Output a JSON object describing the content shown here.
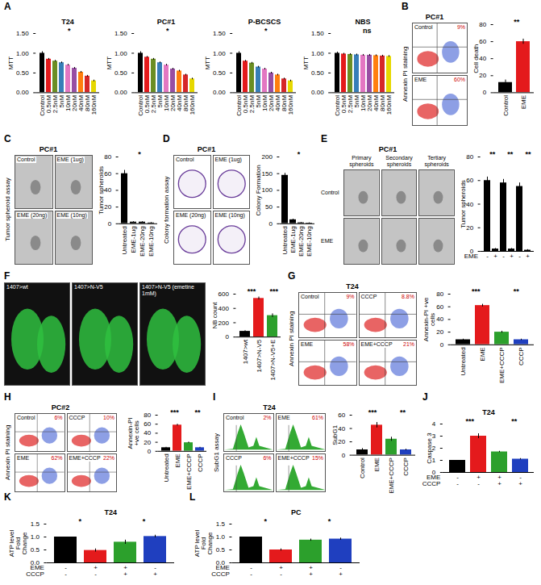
{
  "chart_data": [
    {
      "panel": "A",
      "type": "bar",
      "title": "T24",
      "categories": [
        "Control",
        "0.5nM",
        "2.5nM",
        "5nM",
        "10nM",
        "20nM",
        "40nM",
        "80nM",
        "160nM"
      ],
      "values": [
        1.0,
        0.85,
        0.8,
        0.76,
        0.7,
        0.62,
        0.52,
        0.42,
        0.3
      ],
      "errors": [
        0.04,
        0.02,
        0.02,
        0.02,
        0.02,
        0.02,
        0.02,
        0.02,
        0.02
      ],
      "colors": [
        "#000000",
        "#e41a1c",
        "#6b8e23",
        "#377eb8",
        "#e377c2",
        "#984ea3",
        "#ff7f0e",
        "#d62728",
        "#e6d800"
      ],
      "ylabel": "MTT",
      "ylim": [
        0,
        1.5
      ],
      "yticks": [
        {
          "value": 0,
          "label": "0.00"
        },
        {
          "value": 0.5,
          "label": "0.50"
        },
        {
          "value": 1,
          "label": "1.00"
        },
        {
          "value": 1.5,
          "label": "1.50"
        }
      ],
      "annotations": [
        "*"
      ]
    },
    {
      "type": "bar",
      "title": "PC#1",
      "categories": [
        "Control",
        "0.5nM",
        "2.5nM",
        "5nM",
        "10nM",
        "20nM",
        "40nM",
        "80nM",
        "160nM"
      ],
      "values": [
        1.0,
        0.9,
        0.85,
        0.76,
        0.7,
        0.6,
        0.55,
        0.45,
        0.35
      ],
      "errors": [
        0.04,
        0.02,
        0.02,
        0.02,
        0.02,
        0.02,
        0.02,
        0.02,
        0.02
      ],
      "colors": [
        "#000000",
        "#e41a1c",
        "#6b8e23",
        "#377eb8",
        "#e377c2",
        "#984ea3",
        "#ff7f0e",
        "#d62728",
        "#e6d800"
      ],
      "ylabel": "MTT",
      "ylim": [
        0,
        1.5
      ],
      "yticks": [
        {
          "value": 0,
          "label": "0.00"
        },
        {
          "value": 0.5,
          "label": "0.50"
        },
        {
          "value": 1,
          "label": "1.00"
        },
        {
          "value": 1.5,
          "label": "1.50"
        }
      ],
      "annotations": [
        "*"
      ]
    },
    {
      "type": "bar",
      "title": "P-BCSCS",
      "categories": [
        "Control",
        "0.5nM",
        "2.5nM",
        "5nM",
        "10nM",
        "20nM",
        "40nM",
        "80nM",
        "160nM"
      ],
      "values": [
        1.0,
        0.8,
        0.75,
        0.65,
        0.6,
        0.5,
        0.45,
        0.35,
        0.3
      ],
      "errors": [
        0.04,
        0.02,
        0.02,
        0.02,
        0.02,
        0.02,
        0.02,
        0.02,
        0.02
      ],
      "colors": [
        "#000000",
        "#e41a1c",
        "#6b8e23",
        "#377eb8",
        "#e377c2",
        "#984ea3",
        "#ff7f0e",
        "#d62728",
        "#e6d800"
      ],
      "ylabel": "MTT",
      "ylim": [
        0,
        1.5
      ],
      "yticks": [
        {
          "value": 0,
          "label": "0.00"
        },
        {
          "value": 0.5,
          "label": "0.50"
        },
        {
          "value": 1,
          "label": "1.00"
        },
        {
          "value": 1.5,
          "label": "1.50"
        }
      ],
      "annotations": [
        "*"
      ]
    },
    {
      "type": "bar",
      "title": "NBS",
      "categories": [
        "Control",
        "0.5nM",
        "2.5nM",
        "5nM",
        "10nM",
        "20nM",
        "40nM",
        "80nM",
        "160nM"
      ],
      "values": [
        1.0,
        0.98,
        0.97,
        0.96,
        0.95,
        0.95,
        0.94,
        0.93,
        0.92
      ],
      "errors": [
        0.03,
        0.02,
        0.02,
        0.02,
        0.02,
        0.02,
        0.02,
        0.02,
        0.02
      ],
      "colors": [
        "#000000",
        "#e41a1c",
        "#6b8e23",
        "#377eb8",
        "#e377c2",
        "#984ea3",
        "#ff7f0e",
        "#d62728",
        "#e6d800"
      ],
      "ylabel": "MTT",
      "ylim": [
        0,
        1.5
      ],
      "yticks": [
        {
          "value": 0,
          "label": "0.00"
        },
        {
          "value": 0.5,
          "label": "0.50"
        },
        {
          "value": 1,
          "label": "1.00"
        },
        {
          "value": 1.5,
          "label": "1.50"
        }
      ],
      "annotations": [
        "ns"
      ]
    },
    {
      "type": "bar",
      "categories": [
        "Control",
        "EME"
      ],
      "values": [
        12,
        60
      ],
      "errors": [
        3,
        3
      ],
      "colors": [
        "#000000",
        "#e41a1c"
      ],
      "ylabel": "Cell death",
      "ylim": [
        0,
        80
      ],
      "yticks": [
        0,
        20,
        40,
        60,
        80
      ],
      "annotations": [
        "**"
      ]
    },
    {
      "type": "bar",
      "categories": [
        "Untreated",
        "EME-1ug",
        "EME-20ng",
        "EME-10ng"
      ],
      "values": [
        60,
        2,
        2,
        1
      ],
      "errors": [
        4,
        0.5,
        0.5,
        0.5
      ],
      "color": "#000000",
      "ylabel": "Tumor spheroids",
      "ylim": [
        0,
        80
      ],
      "yticks": [
        0,
        20,
        40,
        60,
        80
      ],
      "annotations": [
        "*"
      ]
    },
    {
      "type": "bar",
      "categories": [
        "Untreated",
        "EME-1ug",
        "EME-20ng",
        "EME-10ng"
      ],
      "values": [
        145,
        12,
        3,
        2
      ],
      "errors": [
        6,
        2,
        1,
        1
      ],
      "color": "#000000",
      "ylabel": "Colony Formation",
      "ylim": [
        0,
        200
      ],
      "yticks": [
        0,
        50,
        100,
        150,
        200
      ],
      "annotations": [
        "*"
      ]
    },
    {
      "type": "bar",
      "categories": [
        null,
        null,
        null,
        null,
        null,
        null
      ],
      "conditions": [
        {
          "name": "EME",
          "signs": [
            "-",
            "+",
            "-",
            "+",
            "-",
            "+"
          ]
        }
      ],
      "values": [
        60,
        2,
        58,
        2,
        55,
        1
      ],
      "errors": [
        3,
        0.5,
        3,
        0.5,
        3,
        0.5
      ],
      "color": "#000000",
      "ylabel": "Tumor spheroids",
      "ylim": [
        0,
        80
      ],
      "yticks": [
        0,
        20,
        40,
        60,
        80
      ],
      "annotations": [
        "**",
        "**",
        "**"
      ]
    },
    {
      "type": "bar",
      "categories": [
        "1407>wt",
        "1407>N-V5",
        "1407>N-V5+E"
      ],
      "values": [
        80,
        540,
        300
      ],
      "errors": [
        10,
        20,
        25
      ],
      "colors": [
        "#000000",
        "#e41a1c",
        "#2ca02c"
      ],
      "ylabel": "NB count",
      "ylim": [
        0,
        600
      ],
      "yticks": [
        0,
        200,
        400,
        600
      ],
      "annotations": [
        "***",
        "***"
      ]
    },
    {
      "type": "bar",
      "categories": [
        "Untreated",
        "EME",
        "EME+CCCP",
        "CCCP"
      ],
      "values": [
        8,
        62,
        20,
        8
      ],
      "errors": [
        1,
        2,
        1.5,
        1
      ],
      "colors": [
        "#000000",
        "#e41a1c",
        "#2ca02c",
        "#1f3fbf"
      ],
      "ylabel": "Annexin-PI +ve cells",
      "ylim": [
        0,
        80
      ],
      "yticks": [
        0,
        20,
        40,
        60,
        80
      ],
      "annotations": [
        "***",
        "**"
      ]
    },
    {
      "type": "bar",
      "categories": [
        "Untreated",
        "EME",
        "EME+CCCP",
        "CCCP"
      ],
      "values": [
        8,
        58,
        19,
        8
      ],
      "errors": [
        1,
        2,
        1.5,
        1
      ],
      "colors": [
        "#000000",
        "#e41a1c",
        "#2ca02c",
        "#1f3fbf"
      ],
      "ylabel": "Annexin-PI +ve cells",
      "ylim": [
        0,
        80
      ],
      "yticks": [
        0,
        20,
        40,
        60,
        80
      ],
      "annotations": [
        "***",
        "**"
      ]
    },
    {
      "type": "bar",
      "categories": [
        "Control",
        "EME",
        "EME+CCCP",
        "CCCP"
      ],
      "values": [
        8,
        45,
        24,
        8
      ],
      "errors": [
        2,
        4,
        3,
        1
      ],
      "colors": [
        "#000000",
        "#e41a1c",
        "#2ca02c",
        "#1f3fbf"
      ],
      "ylabel": "SubG1",
      "ylim": [
        0,
        60
      ],
      "yticks": [
        0,
        20,
        40,
        60
      ],
      "annotations": [
        "***",
        "**"
      ]
    },
    {
      "panel": "J",
      "type": "bar",
      "title": "T24",
      "categories": [
        null,
        null,
        null,
        null
      ],
      "conditions": [
        {
          "name": "EME",
          "signs": [
            "-",
            "+",
            "+",
            "-"
          ]
        },
        {
          "name": "CCCP",
          "signs": [
            "-",
            "-",
            "+",
            "+"
          ]
        }
      ],
      "values": [
        1,
        3,
        1.7,
        1.1
      ],
      "errors": [
        0,
        0.2,
        0.05,
        0.05
      ],
      "colors": [
        "#000000",
        "#e41a1c",
        "#2ca02c",
        "#1f3fbf"
      ],
      "ylabel": "Caspase 3",
      "ylim": [
        0,
        4
      ],
      "yticks": [
        0,
        1,
        2,
        3,
        4
      ],
      "annotations": [
        "***",
        "**"
      ]
    },
    {
      "panel": "K",
      "type": "bar",
      "title": "T24",
      "categories": [
        null,
        null,
        null,
        null
      ],
      "conditions": [
        {
          "name": "EME",
          "signs": [
            "-",
            "+",
            "+",
            "-"
          ]
        },
        {
          "name": "CCCP",
          "signs": [
            "-",
            "-",
            "+",
            "+"
          ]
        }
      ],
      "values": [
        1,
        0.48,
        0.8,
        1.02
      ],
      "errors": [
        0,
        0.06,
        0.08,
        0.05
      ],
      "colors": [
        "#000000",
        "#e41a1c",
        "#2ca02c",
        "#1f3fbf"
      ],
      "ylabel": "ATP level Fold Change",
      "ylim": [
        0,
        1.5
      ],
      "yticks": [
        {
          "value": 0,
          "label": "0.0"
        },
        {
          "value": 0.5,
          "label": "0.5"
        },
        {
          "value": 1,
          "label": "1.0"
        },
        {
          "value": 1.5,
          "label": "1.5"
        }
      ],
      "annotations": [
        "*",
        "*"
      ]
    },
    {
      "panel": "L",
      "type": "bar",
      "title": "PC",
      "categories": [
        null,
        null,
        null,
        null
      ],
      "conditions": [
        {
          "name": "EME",
          "signs": [
            "-",
            "+",
            "+",
            "-"
          ]
        },
        {
          "name": "CCCP",
          "signs": [
            "-",
            "-",
            "+",
            "+"
          ]
        }
      ],
      "values": [
        1,
        0.5,
        0.88,
        0.92
      ],
      "errors": [
        0,
        0.04,
        0.04,
        0.04
      ],
      "colors": [
        "#000000",
        "#e41a1c",
        "#2ca02c",
        "#1f3fbf"
      ],
      "ylabel": "ATP level Fold Change",
      "ylim": [
        0,
        1.5
      ],
      "yticks": [
        {
          "value": 0,
          "label": "0.0"
        },
        {
          "value": 0.5,
          "label": "0.5"
        },
        {
          "value": 1,
          "label": "1.0"
        },
        {
          "value": 1.5,
          "label": "1.5"
        }
      ],
      "annotations": [
        "*",
        "*"
      ]
    }
  ],
  "figure_panels": [
    {
      "panel": "B",
      "type": "flow",
      "title": "PC#1",
      "side_label": "Annexin PI staining",
      "tiles": [
        {
          "label": "Control",
          "value": "9%"
        },
        {
          "label": "EME",
          "value": "60%"
        }
      ]
    },
    {
      "panel": "C",
      "type": "micrograph",
      "title": "PC#1",
      "side_label": "Tumor spheroid assay",
      "tiles": [
        {
          "label": "Control"
        },
        {
          "label": "EME (1ug)"
        },
        {
          "label": "EME (20ng)"
        },
        {
          "label": "EME (10ng)"
        }
      ]
    },
    {
      "panel": "D",
      "type": "colony",
      "title": "PC#1",
      "side_label": "Colony formation assay",
      "tiles": [
        {
          "label": "Control"
        },
        {
          "label": "EME (1ug)"
        },
        {
          "label": "EME (20ng)"
        },
        {
          "label": "EME (10ng)"
        }
      ]
    },
    {
      "panel": "E",
      "type": "micrograph",
      "title": "PC#1",
      "column_labels": [
        "Primary spheroids",
        "Secondary spheroids",
        "Tertiary spheroids"
      ],
      "row_labels": [
        "Control",
        "EME"
      ]
    },
    {
      "panel": "F",
      "type": "fluorescence",
      "tiles": [
        {
          "label": "1407>wt"
        },
        {
          "label": "1407>N-V5"
        },
        {
          "label": "1407>N-V5 (emetine 1mM)"
        }
      ]
    },
    {
      "panel": "G",
      "type": "flow",
      "title": "T24",
      "side_label": "Annexin PI staining",
      "tiles": [
        {
          "label": "Control",
          "value": "9%"
        },
        {
          "label": "CCCP",
          "value": "8.8%"
        },
        {
          "label": "EME",
          "value": "58%"
        },
        {
          "label": "EME+CCCP",
          "value": "21%"
        }
      ]
    },
    {
      "panel": "H",
      "type": "flow",
      "title": "PC#2",
      "side_label": "Annexin PI staining",
      "tiles": [
        {
          "label": "Control",
          "value": "6%"
        },
        {
          "label": "CCCP",
          "value": "10%"
        },
        {
          "label": "EME",
          "value": "62%"
        },
        {
          "label": "EME+CCCP",
          "value": "22%"
        }
      ]
    },
    {
      "panel": "I",
      "type": "histogram",
      "title": "T24",
      "side_label": "SubG1 assay",
      "tiles": [
        {
          "label": "Control",
          "value": "2%"
        },
        {
          "label": "EME",
          "value": "61%"
        },
        {
          "label": "CCCP",
          "value": "6%"
        },
        {
          "label": "EME+CCCP",
          "value": "15%"
        }
      ]
    }
  ]
}
